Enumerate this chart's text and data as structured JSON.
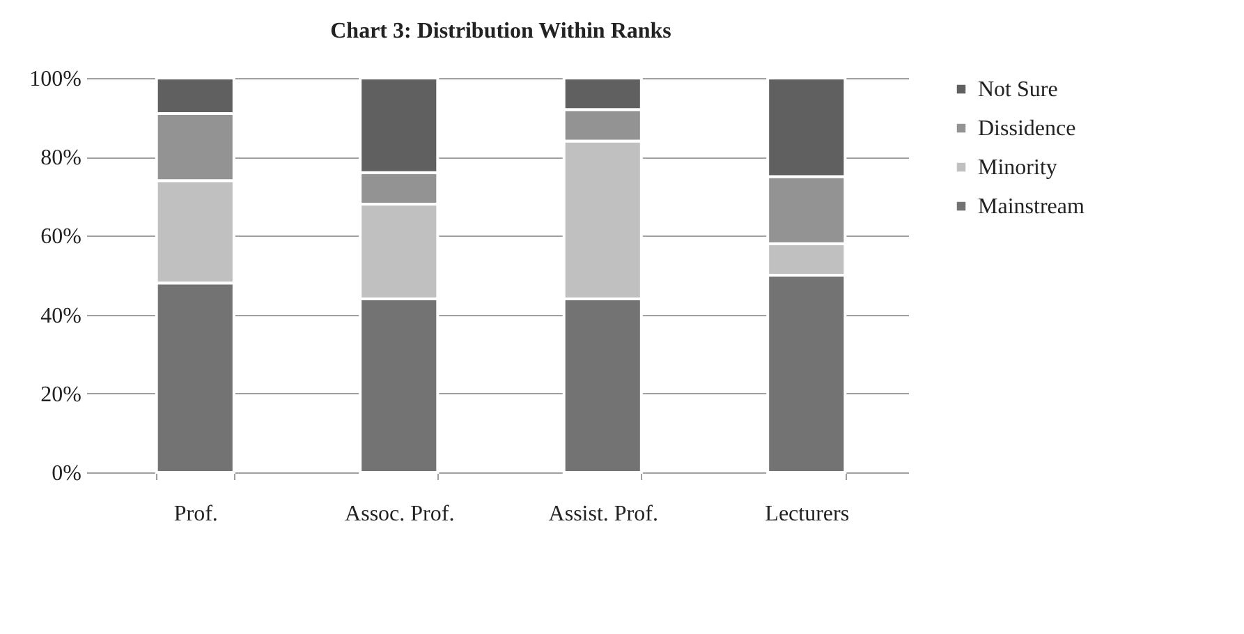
{
  "chart_data": {
    "type": "bar",
    "title": "Chart 3: Distribution Within Ranks",
    "stacked": true,
    "categories": [
      "Prof.",
      "Assoc. Prof.",
      "Assist. Prof.",
      "Lecturers"
    ],
    "series": [
      {
        "name": "Mainstream",
        "color": "#737373",
        "values": [
          48,
          44,
          44,
          50
        ]
      },
      {
        "name": "Minority",
        "color": "#c0c0c0",
        "values": [
          26,
          24,
          40,
          8
        ]
      },
      {
        "name": "Dissidence",
        "color": "#939393",
        "values": [
          17,
          8,
          8,
          17
        ]
      },
      {
        "name": "Not Sure",
        "color": "#606060",
        "values": [
          9,
          24,
          8,
          25
        ]
      }
    ],
    "ylim": [
      0,
      100
    ],
    "yticks": [
      {
        "value": 0,
        "label": "0%"
      },
      {
        "value": 20,
        "label": "20%"
      },
      {
        "value": 40,
        "label": "40%"
      },
      {
        "value": 60,
        "label": "60%"
      },
      {
        "value": 80,
        "label": "80%"
      },
      {
        "value": 100,
        "label": "100%"
      }
    ],
    "grid": "y",
    "legend": "right"
  }
}
